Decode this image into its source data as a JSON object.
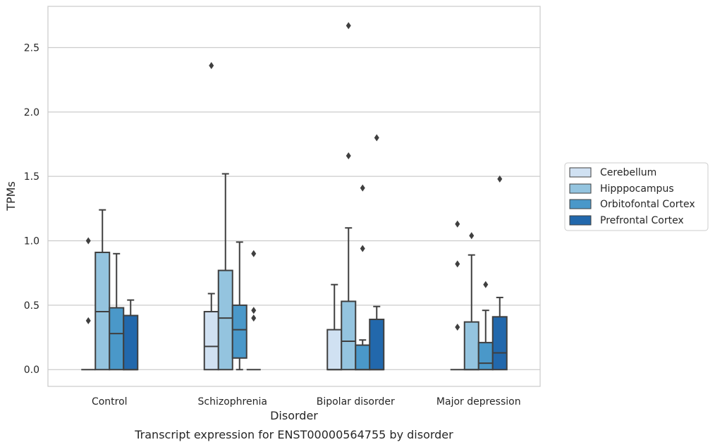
{
  "chart_data": {
    "type": "box",
    "caption": "Transcript expression for ENST00000564755 by disorder",
    "xlabel": "Disorder",
    "ylabel": "TPMs",
    "ylim": [
      -0.13,
      2.82
    ],
    "yticks": [
      0.0,
      0.5,
      1.0,
      1.5,
      2.0,
      2.5
    ],
    "ytick_labels": [
      "0.0",
      "0.5",
      "1.0",
      "1.5",
      "2.0",
      "2.5"
    ],
    "grid": "horizontal",
    "legend_placement": "right",
    "categories": [
      "Control",
      "Schizophrenia",
      "Bipolar disorder",
      "Major depression"
    ],
    "series": [
      {
        "name": "Cerebellum",
        "color": "#d0e1f2",
        "boxes": [
          {
            "q1": 0.0,
            "median": 0.0,
            "q3": 0.0,
            "whisker_low": 0.0,
            "whisker_high": 0.0,
            "outliers": [
              0.38,
              1.0
            ]
          },
          {
            "q1": 0.0,
            "median": 0.18,
            "q3": 0.45,
            "whisker_low": 0.0,
            "whisker_high": 0.59,
            "outliers": [
              2.36
            ]
          },
          {
            "q1": 0.0,
            "median": 0.0,
            "q3": 0.31,
            "whisker_low": 0.0,
            "whisker_high": 0.66,
            "outliers": []
          },
          {
            "q1": 0.0,
            "median": 0.0,
            "q3": 0.0,
            "whisker_low": 0.0,
            "whisker_high": 0.0,
            "outliers": [
              0.33,
              0.82,
              1.13
            ]
          }
        ]
      },
      {
        "name": "Hipppocampus",
        "color": "#94c4df",
        "boxes": [
          {
            "q1": 0.0,
            "median": 0.45,
            "q3": 0.91,
            "whisker_low": 0.0,
            "whisker_high": 1.24,
            "outliers": []
          },
          {
            "q1": 0.0,
            "median": 0.4,
            "q3": 0.77,
            "whisker_low": 0.0,
            "whisker_high": 1.52,
            "outliers": []
          },
          {
            "q1": 0.0,
            "median": 0.22,
            "q3": 0.53,
            "whisker_low": 0.0,
            "whisker_high": 1.1,
            "outliers": [
              1.66,
              2.67
            ]
          },
          {
            "q1": 0.0,
            "median": 0.0,
            "q3": 0.37,
            "whisker_low": 0.0,
            "whisker_high": 0.89,
            "outliers": [
              1.04
            ]
          }
        ]
      },
      {
        "name": "Orbitofontal Cortex",
        "color": "#4a98c9",
        "boxes": [
          {
            "q1": 0.0,
            "median": 0.28,
            "q3": 0.48,
            "whisker_low": 0.0,
            "whisker_high": 0.9,
            "outliers": []
          },
          {
            "q1": 0.09,
            "median": 0.31,
            "q3": 0.5,
            "whisker_low": 0.0,
            "whisker_high": 0.99,
            "outliers": []
          },
          {
            "q1": 0.0,
            "median": 0.0,
            "q3": 0.19,
            "whisker_low": 0.0,
            "whisker_high": 0.23,
            "outliers": [
              0.94,
              1.41
            ]
          },
          {
            "q1": 0.0,
            "median": 0.05,
            "q3": 0.21,
            "whisker_low": 0.0,
            "whisker_high": 0.46,
            "outliers": [
              0.66
            ]
          }
        ]
      },
      {
        "name": "Prefrontal Cortex",
        "color": "#2268ac",
        "boxes": [
          {
            "q1": 0.0,
            "median": 0.0,
            "q3": 0.42,
            "whisker_low": 0.0,
            "whisker_high": 0.54,
            "outliers": []
          },
          {
            "q1": 0.0,
            "median": 0.0,
            "q3": 0.0,
            "whisker_low": 0.0,
            "whisker_high": 0.0,
            "outliers": [
              0.4,
              0.46,
              0.9
            ]
          },
          {
            "q1": 0.0,
            "median": 0.0,
            "q3": 0.39,
            "whisker_low": 0.0,
            "whisker_high": 0.49,
            "outliers": [
              1.8
            ]
          },
          {
            "q1": 0.0,
            "median": 0.13,
            "q3": 0.41,
            "whisker_low": 0.0,
            "whisker_high": 0.56,
            "outliers": [
              1.48
            ]
          }
        ]
      }
    ]
  }
}
